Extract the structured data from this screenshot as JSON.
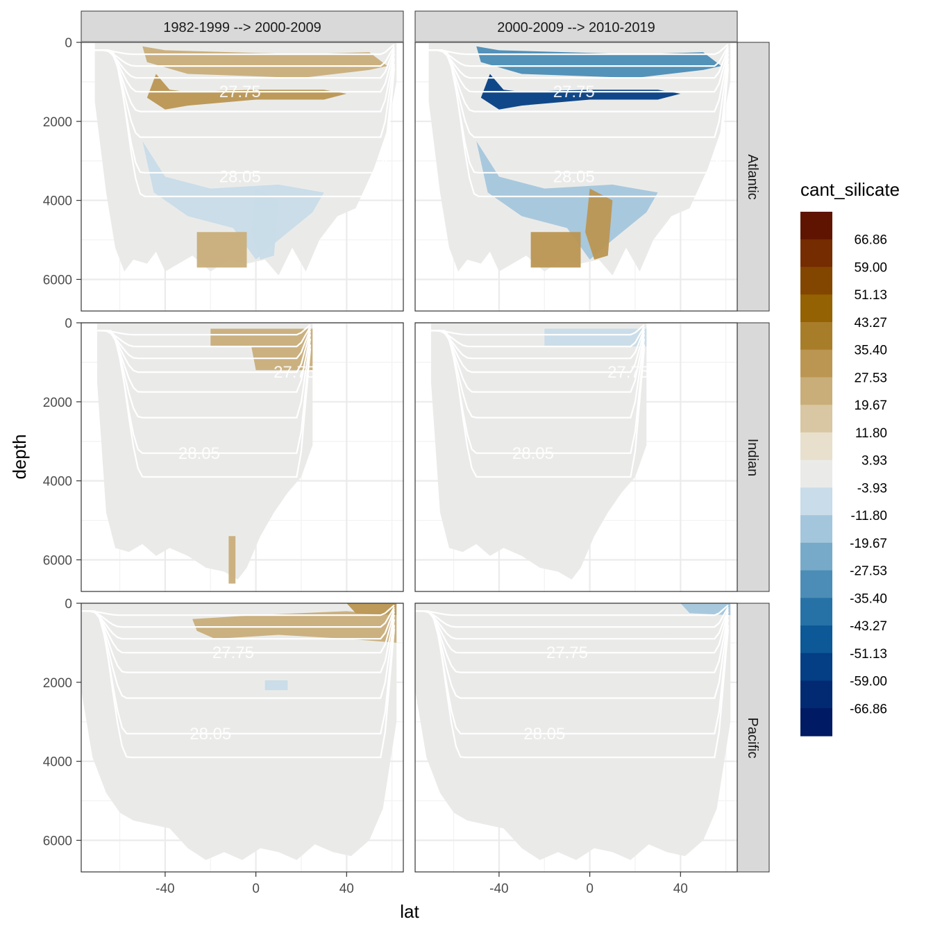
{
  "chart_data": {
    "type": "heatmap",
    "title": "",
    "xlabel": "lat",
    "ylabel": "depth",
    "x_ticks": [
      -40,
      0,
      40
    ],
    "y_ticks": [
      0,
      2000,
      4000,
      6000
    ],
    "xlim": [
      -77,
      65
    ],
    "ylim": [
      6800,
      0
    ],
    "column_facets": [
      "1982-1999 --> 2000-2009",
      "2000-2009 --> 2010-2019"
    ],
    "row_facets": [
      "Atlantic",
      "Indian",
      "Pacific"
    ],
    "isopycnal_labels": [
      "27.75",
      "28.05"
    ],
    "legend": {
      "title": "cant_silicate",
      "labels": [
        "66.86",
        "59.00",
        "51.13",
        "43.27",
        "35.40",
        "27.53",
        "19.67",
        "11.80",
        "3.93",
        "-3.93",
        "-11.80",
        "-19.67",
        "-27.53",
        "-35.40",
        "-43.27",
        "-51.13",
        "-59.00",
        "-66.86"
      ],
      "colors": [
        "#5e1400",
        "#742c00",
        "#834600",
        "#946103",
        "#a87d2a",
        "#bb9652",
        "#c9ae7a",
        "#d8c7a2",
        "#e8dfcc",
        "#eaebe9",
        "#c8dce9",
        "#a4c6dc",
        "#77aac8",
        "#4b8db6",
        "#2672a6",
        "#0d5896",
        "#043e84",
        "#022a73",
        "#001a63"
      ]
    },
    "panels": [
      {
        "row": "Atlantic",
        "col": 0,
        "bins": {
          "27.75_band": 25,
          "upper": 15,
          "mid_depth": -12,
          "deep": -15,
          "abyss_south": 18
        }
      },
      {
        "row": "Atlantic",
        "col": 1,
        "bins": {
          "27.75_band": -60,
          "upper": -40,
          "mid_depth": -22,
          "deep": 20,
          "abyss_south": 25
        }
      },
      {
        "row": "Indian",
        "col": 0,
        "bins": {
          "upper_north": 15,
          "mid_north": 18,
          "abyss_spot": 12
        }
      },
      {
        "row": "Indian",
        "col": 1,
        "bins": {
          "upper_north": -15,
          "mid_north": -8
        }
      },
      {
        "row": "Pacific",
        "col": 0,
        "bins": {
          "upper_north": 15,
          "surface_north": 25,
          "mid_spot": -12
        }
      },
      {
        "row": "Pacific",
        "col": 1,
        "bins": {
          "upper_north": -8,
          "surface_north": -25
        }
      }
    ]
  }
}
